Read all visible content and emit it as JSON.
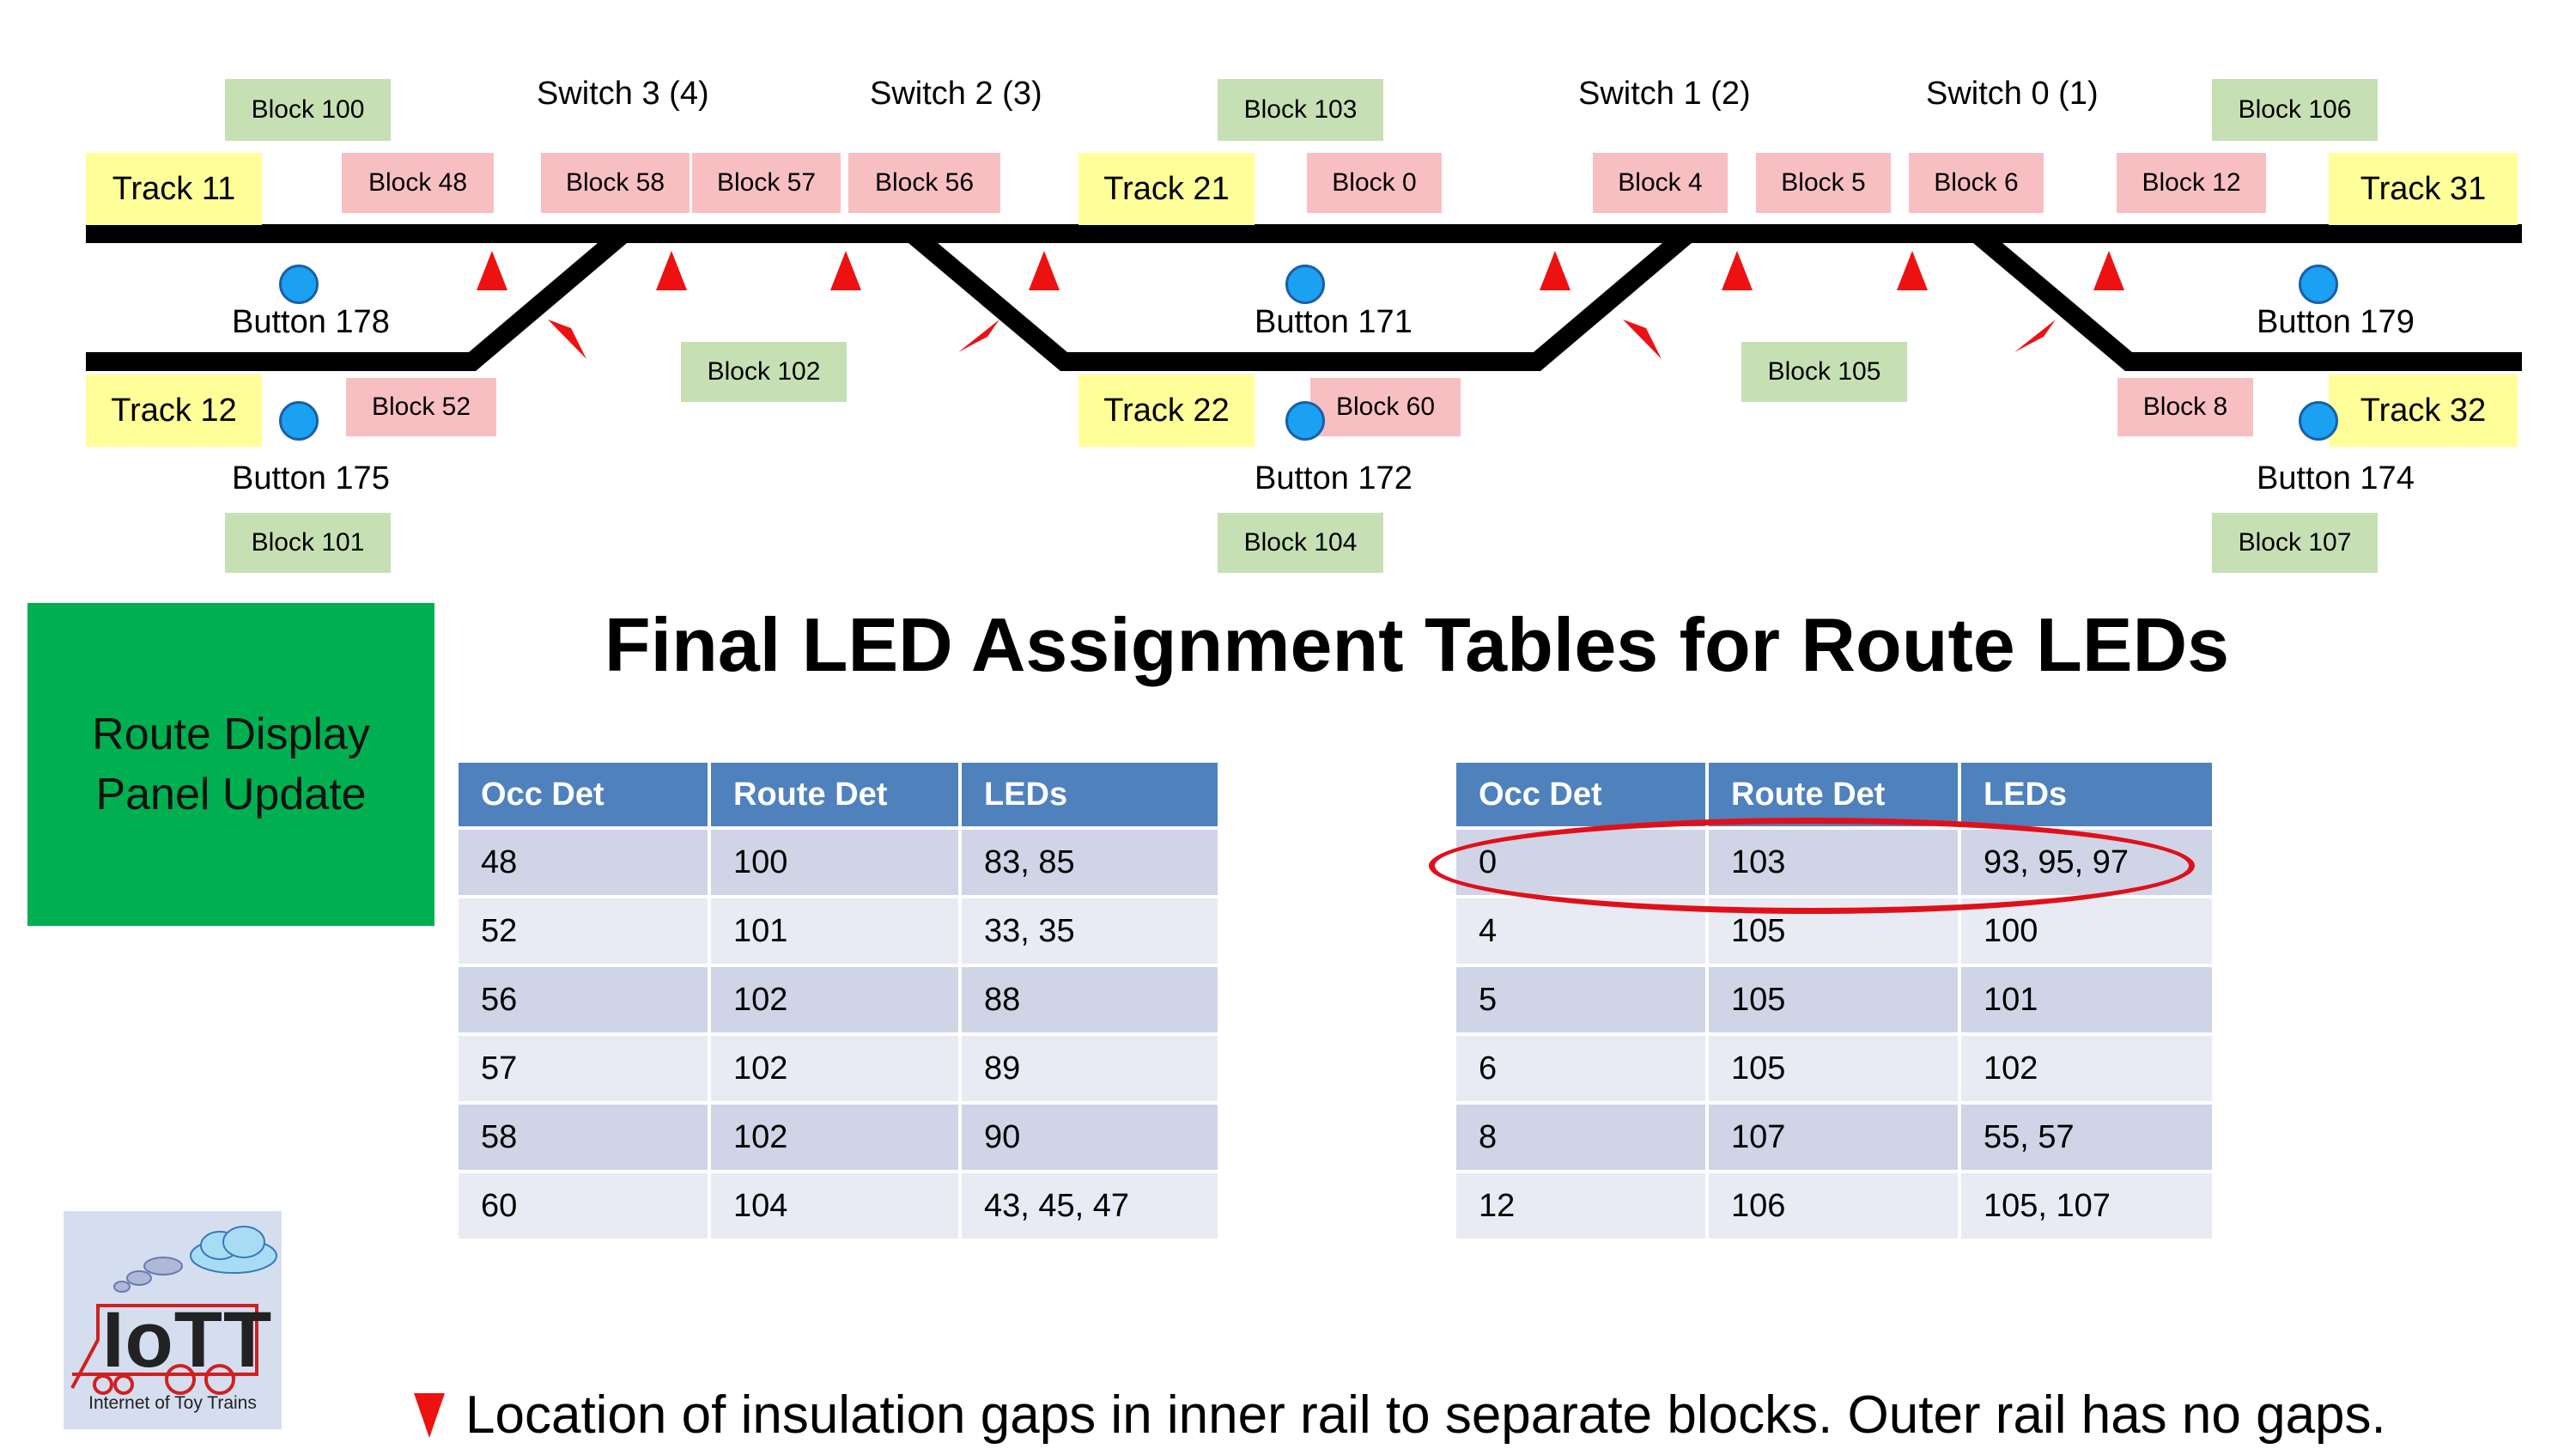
{
  "colors": {
    "track": "#000000",
    "gap_marker": "#ee1111",
    "button": "#1ba1f2",
    "block_route": "#c6e0b4",
    "block_occ": "#f8bfc3",
    "track_label": "#ffff99",
    "panel": "#00b050",
    "table_header": "#4f81bd",
    "highlight": "#e0101a"
  },
  "switches": {
    "s3": "Switch 3 (4)",
    "s2": "Switch 2 (3)",
    "s1": "Switch 1 (2)",
    "s0": "Switch 0 (1)"
  },
  "tracks": {
    "t11": "Track 11",
    "t12": "Track 12",
    "t21": "Track 21",
    "t22": "Track 22",
    "t31": "Track 31",
    "t32": "Track 32"
  },
  "blocks": {
    "b100": "Block 100",
    "b101": "Block 101",
    "b102": "Block 102",
    "b103": "Block 103",
    "b104": "Block 104",
    "b105": "Block 105",
    "b106": "Block 106",
    "b107": "Block 107",
    "b48": "Block 48",
    "b58": "Block 58",
    "b57": "Block 57",
    "b56": "Block 56",
    "b0": "Block 0",
    "b4": "Block 4",
    "b5": "Block 5",
    "b6": "Block 6",
    "b12": "Block 12",
    "b52": "Block 52",
    "b60": "Block 60",
    "b8": "Block 8"
  },
  "buttons": {
    "btn178": "Button 178",
    "btn175": "Button 175",
    "btn171": "Button 171",
    "btn172": "Button 172",
    "btn179": "Button 179",
    "btn174": "Button 174"
  },
  "title": "Final LED Assignment Tables for Route LEDs",
  "panel": {
    "line1": "Route Display",
    "line2": "Panel Update"
  },
  "table_headers": [
    "Occ Det",
    "Route Det",
    "LEDs"
  ],
  "table_left": [
    [
      "48",
      "100",
      "83, 85"
    ],
    [
      "52",
      "101",
      "33, 35"
    ],
    [
      "56",
      "102",
      "88"
    ],
    [
      "57",
      "102",
      "89"
    ],
    [
      "58",
      "102",
      "90"
    ],
    [
      "60",
      "104",
      "43, 45, 47"
    ]
  ],
  "table_right": [
    [
      "0",
      "103",
      "93, 95, 97"
    ],
    [
      "4",
      "105",
      "100"
    ],
    [
      "5",
      "105",
      "101"
    ],
    [
      "6",
      "105",
      "102"
    ],
    [
      "8",
      "107",
      "55, 57"
    ],
    [
      "12",
      "106",
      "105, 107"
    ]
  ],
  "logo": {
    "text": "IoTT",
    "subtitle": "Internet of Toy Trains"
  },
  "legend": "Location of insulation gaps in inner rail to separate blocks. Outer rail has no gaps."
}
